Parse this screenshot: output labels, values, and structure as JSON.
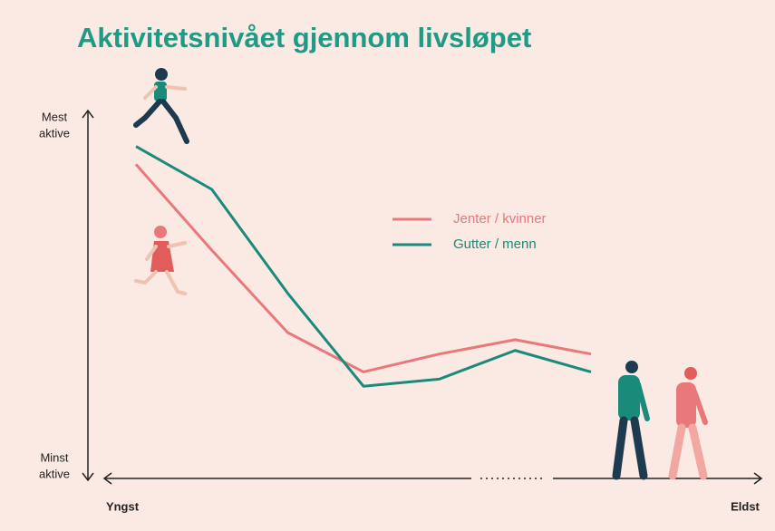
{
  "chart_data": {
    "type": "line",
    "title": "Aktivitetsnivået gjennom livsløpet",
    "y_top_label": [
      "Mest",
      "aktive"
    ],
    "y_bottom_label": [
      "Minst",
      "aktive"
    ],
    "x_start_label": "Yngst",
    "x_end_label": "Eldst",
    "categories": [
      null,
      null,
      null,
      null,
      null,
      null,
      null
    ],
    "ylim": [
      0,
      100
    ],
    "series": [
      {
        "name": "Jenter / kvinner",
        "color": "#e8787a",
        "values": [
          87,
          63,
          40,
          29,
          34,
          38,
          34
        ]
      },
      {
        "name": "Gutter / menn",
        "color": "#1a8a7a",
        "values": [
          92,
          80,
          51,
          25,
          27,
          35,
          29
        ]
      }
    ]
  }
}
